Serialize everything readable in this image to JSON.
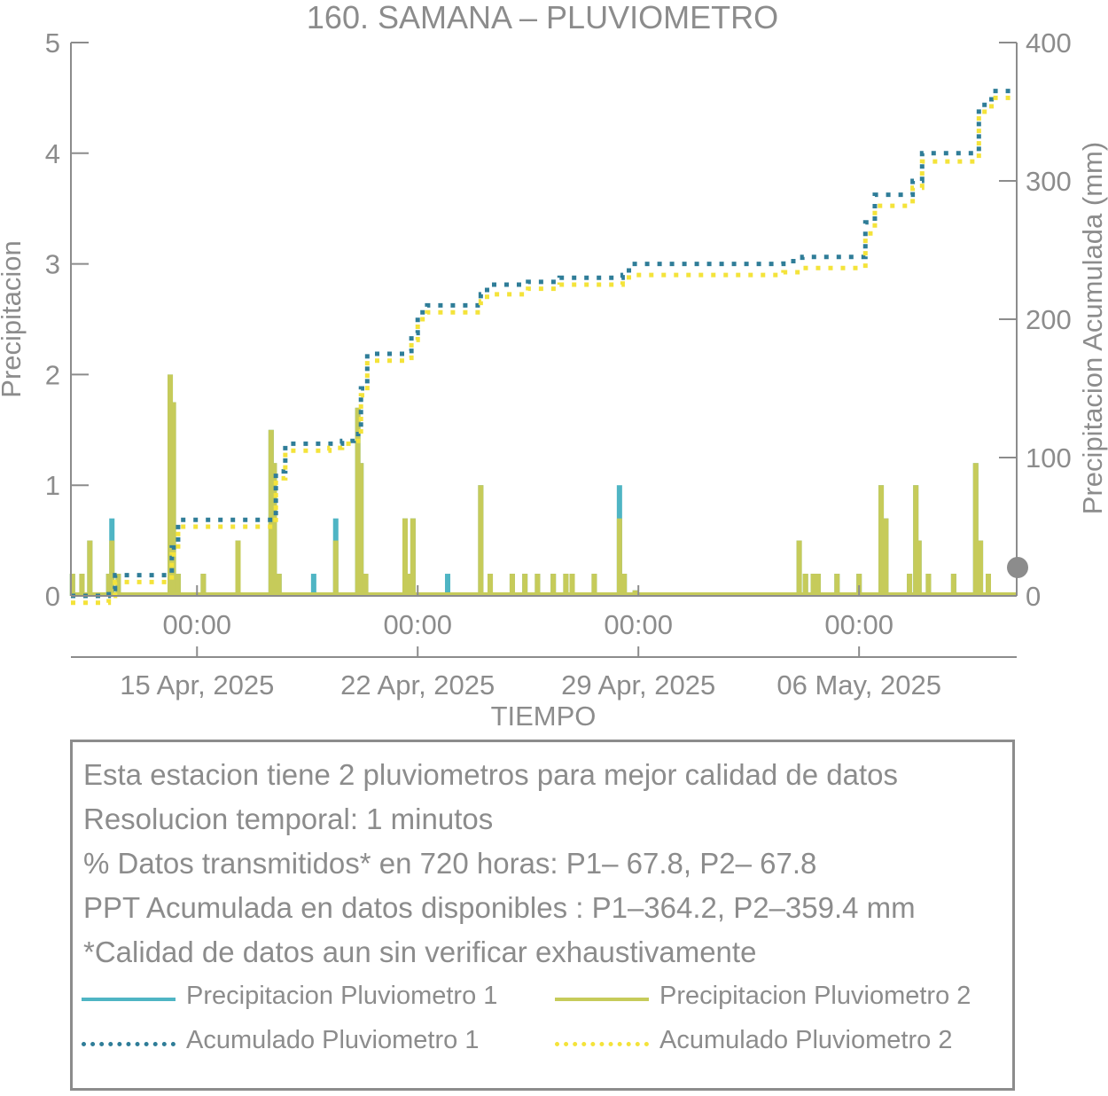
{
  "colors": {
    "p1_line": "#4fb5c4",
    "p2_line": "#c6cb5a",
    "p1_acum": "#2f7d98",
    "p2_acum": "#f4e33a",
    "axis": "#8c8c8c",
    "text": "#8c8c8c"
  },
  "chart_data": {
    "type": "bar+line",
    "title": "160. SAMANA – PLUVIOMETRO",
    "xlabel": "TIEMPO",
    "ylabel_left": "Precipitacion",
    "ylabel_right": "Precipitacion Acumulada (mm)",
    "ylim_left": [
      0,
      5
    ],
    "ylim_right": [
      0,
      400
    ],
    "yticks_left": [
      "0",
      "1",
      "2",
      "3",
      "4",
      "5"
    ],
    "yticks_right": [
      "0",
      "100",
      "200",
      "300",
      "400"
    ],
    "xlim_days": [
      9.0,
      39.0
    ],
    "x_time_ticks": [
      {
        "day": 13,
        "label": "00:00"
      },
      {
        "day": 20,
        "label": "00:00"
      },
      {
        "day": 27,
        "label": "00:00"
      },
      {
        "day": 34,
        "label": "00:00"
      }
    ],
    "x_date_ticks": [
      {
        "day": 13,
        "label": "15 Apr, 2025"
      },
      {
        "day": 20,
        "label": "22 Apr, 2025"
      },
      {
        "day": 27,
        "label": "29 Apr, 2025"
      },
      {
        "day": 34,
        "label": "06 May, 2025"
      }
    ],
    "series": [
      {
        "name": "Precipitacion Pluviometro 1",
        "type": "bar",
        "points": [
          [
            9.05,
            0.2
          ],
          [
            9.35,
            0.2
          ],
          [
            9.6,
            0.5
          ],
          [
            10.2,
            0.2
          ],
          [
            10.3,
            0.7
          ],
          [
            10.5,
            0.2
          ],
          [
            12.15,
            2.0
          ],
          [
            12.25,
            1.75
          ],
          [
            12.4,
            0.2
          ],
          [
            13.2,
            0.2
          ],
          [
            14.3,
            0.5
          ],
          [
            15.35,
            1.5
          ],
          [
            15.45,
            1.2
          ],
          [
            15.6,
            0.2
          ],
          [
            16.7,
            0.2
          ],
          [
            17.4,
            0.7
          ],
          [
            18.1,
            1.7
          ],
          [
            18.2,
            1.2
          ],
          [
            18.35,
            0.2
          ],
          [
            19.6,
            0.7
          ],
          [
            19.75,
            0.2
          ],
          [
            19.85,
            0.7
          ],
          [
            20.95,
            0.2
          ],
          [
            22.0,
            1.0
          ],
          [
            22.3,
            0.2
          ],
          [
            23.0,
            0.2
          ],
          [
            23.4,
            0.2
          ],
          [
            23.8,
            0.2
          ],
          [
            24.3,
            0.2
          ],
          [
            24.7,
            0.2
          ],
          [
            24.9,
            0.2
          ],
          [
            25.6,
            0.2
          ],
          [
            26.4,
            1.0
          ],
          [
            26.55,
            0.2
          ],
          [
            26.9,
            0.05
          ],
          [
            32.1,
            0.5
          ],
          [
            32.3,
            0.2
          ],
          [
            32.55,
            0.2
          ],
          [
            32.7,
            0.2
          ],
          [
            33.3,
            0.2
          ],
          [
            34.0,
            0.2
          ],
          [
            34.7,
            1.0
          ],
          [
            34.85,
            0.7
          ],
          [
            35.6,
            0.2
          ],
          [
            35.8,
            1.0
          ],
          [
            35.9,
            0.5
          ],
          [
            36.2,
            0.2
          ],
          [
            37.0,
            0.2
          ],
          [
            37.7,
            1.2
          ],
          [
            37.85,
            0.5
          ],
          [
            38.1,
            0.2
          ]
        ]
      },
      {
        "name": "Precipitacion Pluviometro 2",
        "type": "bar",
        "points": [
          [
            9.05,
            0.2
          ],
          [
            9.35,
            0.2
          ],
          [
            9.6,
            0.5
          ],
          [
            10.2,
            0.2
          ],
          [
            10.3,
            0.5
          ],
          [
            10.5,
            0.2
          ],
          [
            12.15,
            2.0
          ],
          [
            12.25,
            1.75
          ],
          [
            12.4,
            0.2
          ],
          [
            13.2,
            0.2
          ],
          [
            14.3,
            0.5
          ],
          [
            15.35,
            1.5
          ],
          [
            15.45,
            1.2
          ],
          [
            15.6,
            0.2
          ],
          [
            17.4,
            0.5
          ],
          [
            18.1,
            1.7
          ],
          [
            18.2,
            1.2
          ],
          [
            18.35,
            0.2
          ],
          [
            19.6,
            0.7
          ],
          [
            19.75,
            0.2
          ],
          [
            19.85,
            0.7
          ],
          [
            22.0,
            1.0
          ],
          [
            22.3,
            0.2
          ],
          [
            23.0,
            0.2
          ],
          [
            23.4,
            0.2
          ],
          [
            23.8,
            0.2
          ],
          [
            24.3,
            0.2
          ],
          [
            24.7,
            0.2
          ],
          [
            24.9,
            0.2
          ],
          [
            25.6,
            0.2
          ],
          [
            26.4,
            0.7
          ],
          [
            26.55,
            0.2
          ],
          [
            26.9,
            0.05
          ],
          [
            32.1,
            0.5
          ],
          [
            32.3,
            0.2
          ],
          [
            32.55,
            0.2
          ],
          [
            32.7,
            0.2
          ],
          [
            33.3,
            0.2
          ],
          [
            34.0,
            0.2
          ],
          [
            34.7,
            1.0
          ],
          [
            34.85,
            0.7
          ],
          [
            35.6,
            0.2
          ],
          [
            35.8,
            1.0
          ],
          [
            35.9,
            0.5
          ],
          [
            36.2,
            0.2
          ],
          [
            37.0,
            0.2
          ],
          [
            37.7,
            1.2
          ],
          [
            37.85,
            0.5
          ],
          [
            38.1,
            0.2
          ]
        ]
      },
      {
        "name": "Acumulado Pluviometro 1",
        "type": "line",
        "axis": "right",
        "points": [
          [
            9.0,
            0
          ],
          [
            10.2,
            5
          ],
          [
            10.4,
            15
          ],
          [
            12.1,
            15
          ],
          [
            12.2,
            35
          ],
          [
            12.4,
            55
          ],
          [
            14.0,
            55
          ],
          [
            15.4,
            58
          ],
          [
            15.5,
            90
          ],
          [
            15.8,
            110
          ],
          [
            17.2,
            110
          ],
          [
            17.6,
            112
          ],
          [
            18.0,
            117
          ],
          [
            18.2,
            150
          ],
          [
            18.4,
            175
          ],
          [
            19.6,
            177
          ],
          [
            19.8,
            190
          ],
          [
            20.0,
            205
          ],
          [
            20.3,
            210
          ],
          [
            21.8,
            210
          ],
          [
            22.0,
            218
          ],
          [
            22.2,
            225
          ],
          [
            23.5,
            227
          ],
          [
            24.5,
            230
          ],
          [
            25.7,
            230
          ],
          [
            26.5,
            232
          ],
          [
            26.7,
            240
          ],
          [
            28.0,
            240
          ],
          [
            30.0,
            240
          ],
          [
            31.0,
            240
          ],
          [
            31.6,
            242
          ],
          [
            32.2,
            245
          ],
          [
            33.5,
            245
          ],
          [
            34.0,
            245
          ],
          [
            34.2,
            270
          ],
          [
            34.5,
            290
          ],
          [
            35.5,
            290
          ],
          [
            35.7,
            300
          ],
          [
            36.0,
            320
          ],
          [
            37.5,
            320
          ],
          [
            37.8,
            355
          ],
          [
            38.2,
            365
          ],
          [
            39.0,
            365
          ]
        ]
      },
      {
        "name": "Acumulado Pluviometro 2",
        "type": "line",
        "axis": "right",
        "points": [
          [
            9.0,
            -5
          ],
          [
            10.2,
            0
          ],
          [
            10.4,
            10
          ],
          [
            12.1,
            10
          ],
          [
            12.2,
            30
          ],
          [
            12.4,
            50
          ],
          [
            14.0,
            50
          ],
          [
            15.4,
            55
          ],
          [
            15.5,
            85
          ],
          [
            15.8,
            105
          ],
          [
            17.2,
            107
          ],
          [
            17.6,
            110
          ],
          [
            18.0,
            112
          ],
          [
            18.2,
            145
          ],
          [
            18.4,
            170
          ],
          [
            19.6,
            172
          ],
          [
            19.8,
            185
          ],
          [
            20.0,
            200
          ],
          [
            20.3,
            205
          ],
          [
            21.8,
            205
          ],
          [
            22.0,
            213
          ],
          [
            22.2,
            218
          ],
          [
            23.5,
            222
          ],
          [
            24.5,
            225
          ],
          [
            25.7,
            225
          ],
          [
            26.5,
            228
          ],
          [
            26.7,
            232
          ],
          [
            28.0,
            232
          ],
          [
            30.0,
            232
          ],
          [
            31.0,
            232
          ],
          [
            31.6,
            234
          ],
          [
            32.2,
            237
          ],
          [
            33.5,
            237
          ],
          [
            34.0,
            237
          ],
          [
            34.2,
            262
          ],
          [
            34.5,
            282
          ],
          [
            35.5,
            282
          ],
          [
            35.7,
            295
          ],
          [
            36.0,
            314
          ],
          [
            37.5,
            314
          ],
          [
            37.8,
            350
          ],
          [
            38.2,
            360
          ],
          [
            39.0,
            360
          ]
        ]
      }
    ],
    "legend_placement": "bottom"
  },
  "info": {
    "line1": "Esta estacion tiene 2 pluviometros para mejor calidad de datos",
    "line2": "Resolucion temporal: 1 minutos",
    "line3": "% Datos transmitidos* en 720 horas: P1– 67.8, P2– 67.8",
    "line4": "PPT Acumulada en datos disponibles : P1–364.2, P2–359.4 mm",
    "line5": "*Calidad de datos aun sin verificar exhaustivamente"
  },
  "legend": {
    "p1": "Precipitacion Pluviometro 1",
    "p2": "Precipitacion Pluviometro 2",
    "a1": "Acumulado Pluviometro 1",
    "a2": "Acumulado Pluviometro 2"
  }
}
